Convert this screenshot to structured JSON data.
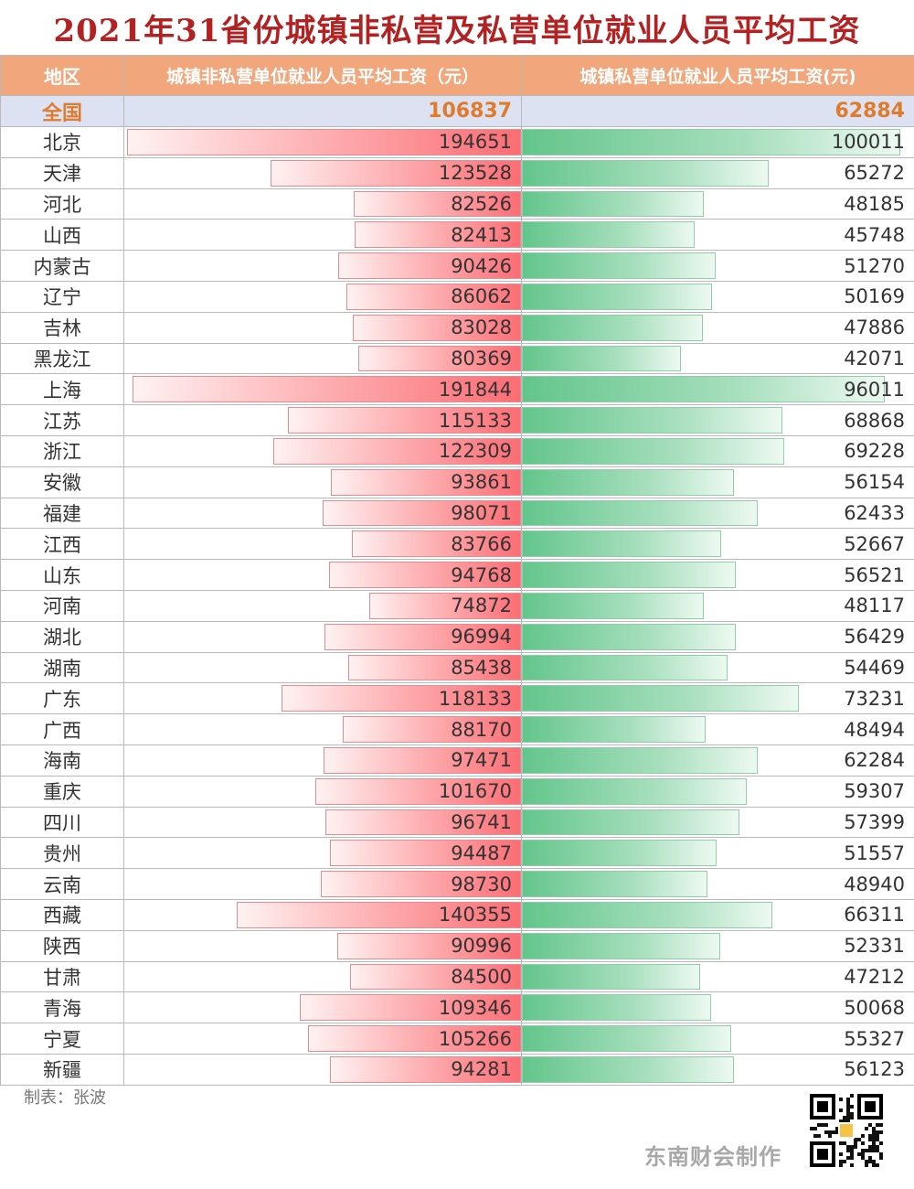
{
  "title": "2021年31省份城镇非私营及私营单位就业人员平均工资",
  "header": {
    "region": "地区",
    "non_private": "城镇非私营单位就业人员平均工资（元）",
    "private": "城镇私营单位就业人员平均工资(元)"
  },
  "total": {
    "label": "全国",
    "non_private": "106837",
    "private": "62884"
  },
  "colors": {
    "title": "#b22222",
    "header_bg": "#f1a67c",
    "total_text": "#e07b2c",
    "non_private_bar": "#fb6d74",
    "private_bar": "#63c58b"
  },
  "chart_data": {
    "type": "bar",
    "title": "2021年31省份城镇非私营及私营单位就业人员平均工资",
    "categories": [
      "北京",
      "天津",
      "河北",
      "山西",
      "内蒙古",
      "辽宁",
      "吉林",
      "黑龙江",
      "上海",
      "江苏",
      "浙江",
      "安徽",
      "福建",
      "江西",
      "山东",
      "河南",
      "湖北",
      "湖南",
      "广东",
      "广西",
      "海南",
      "重庆",
      "四川",
      "贵州",
      "云南",
      "西藏",
      "陕西",
      "甘肃",
      "青海",
      "宁夏",
      "新疆"
    ],
    "series": [
      {
        "name": "城镇非私营单位就业人员平均工资（元）",
        "values": [
          194651,
          123528,
          82526,
          82413,
          90426,
          86062,
          83028,
          80369,
          191844,
          115133,
          122309,
          93861,
          98071,
          83766,
          94768,
          74872,
          96994,
          85438,
          118133,
          88170,
          97471,
          101670,
          96741,
          94487,
          98730,
          140355,
          90996,
          84500,
          109346,
          105266,
          94281
        ]
      },
      {
        "name": "城镇私营单位就业人员平均工资(元)",
        "values": [
          100011,
          65272,
          48185,
          45748,
          51270,
          50169,
          47886,
          42071,
          96011,
          68868,
          69228,
          56154,
          62433,
          52667,
          56521,
          48117,
          56429,
          54469,
          73231,
          48494,
          62284,
          59307,
          57399,
          51557,
          48940,
          66311,
          52331,
          47212,
          50068,
          55327,
          56123
        ]
      }
    ]
  },
  "footer": {
    "credit": "制表：张波",
    "watermark": "东南财会制作"
  },
  "qr_icon": "qr-code-icon"
}
